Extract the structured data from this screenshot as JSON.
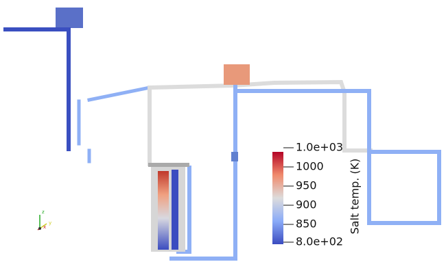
{
  "colorbar": {
    "title": "Salt temp. (K)",
    "labels": [
      "1.0e+03",
      "1000",
      "950",
      "900",
      "850",
      "8.0e+02"
    ]
  },
  "axes_triad": {
    "z": "z",
    "x": "x",
    "y": "y"
  }
}
